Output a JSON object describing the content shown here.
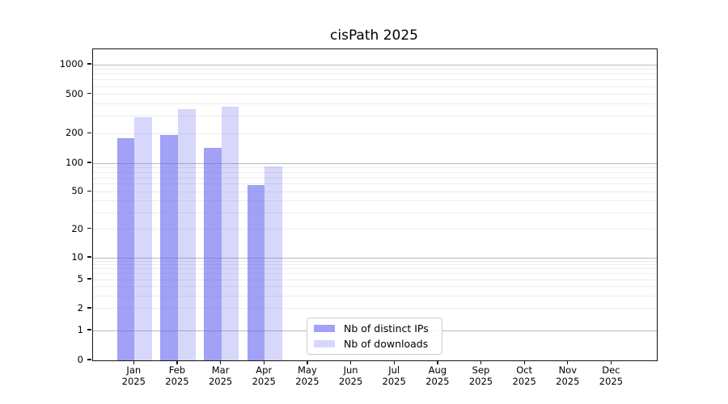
{
  "chart_data": {
    "type": "bar",
    "title": "cisPath 2025",
    "yscale": "symlog",
    "ylim": [
      0,
      1430
    ],
    "y_ticks": [
      0,
      1,
      2,
      5,
      10,
      20,
      50,
      100,
      200,
      500,
      1000
    ],
    "categories": [
      "Jan 2025",
      "Feb 2025",
      "Mar 2025",
      "Apr 2025",
      "May 2025",
      "Jun 2025",
      "Jul 2025",
      "Aug 2025",
      "Sep 2025",
      "Oct 2025",
      "Nov 2025",
      "Dec 2025"
    ],
    "grid": true,
    "legend_position": "lower center",
    "series": [
      {
        "name": "Nb of distinct IPs",
        "color": "#6666ee",
        "alpha": 0.61,
        "values": [
          178,
          193,
          144,
          59,
          0,
          0,
          0,
          0,
          0,
          0,
          0,
          0
        ]
      },
      {
        "name": "Nb of downloads",
        "color": "#6666ee",
        "alpha": 0.26,
        "values": [
          293,
          351,
          376,
          92,
          0,
          0,
          0,
          0,
          0,
          0,
          0,
          0
        ]
      }
    ]
  }
}
